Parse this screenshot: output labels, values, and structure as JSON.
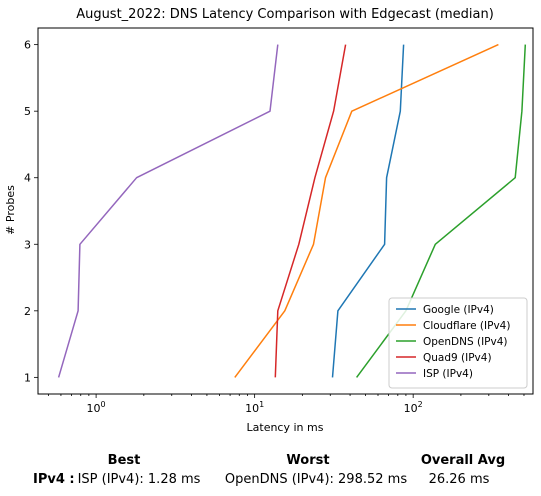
{
  "chart_data": {
    "type": "line",
    "title": "August_2022: DNS Latency Comparison with Edgecast (median)",
    "xlabel": "Latency in ms",
    "ylabel": "# Probes",
    "xscale": "log",
    "xlim": [
      0.43,
      570
    ],
    "ylim": [
      0.75,
      6.25
    ],
    "xticks": [
      {
        "value": 1,
        "base": "10",
        "exp": "0"
      },
      {
        "value": 10,
        "base": "10",
        "exp": "1"
      },
      {
        "value": 100,
        "base": "10",
        "exp": "2"
      }
    ],
    "yticks": [
      1,
      2,
      3,
      4,
      5,
      6
    ],
    "grid": false,
    "legend_position": "lower-right",
    "series": [
      {
        "name": "Google (IPv4)",
        "color": "#1f77b4",
        "points": [
          [
            31,
            1
          ],
          [
            33.5,
            2
          ],
          [
            66,
            3
          ],
          [
            68,
            4
          ],
          [
            83,
            5
          ],
          [
            87,
            6
          ]
        ]
      },
      {
        "name": "Cloudflare (IPv4)",
        "color": "#ff7f0e",
        "points": [
          [
            7.5,
            1
          ],
          [
            15.5,
            2
          ],
          [
            23.5,
            3
          ],
          [
            28,
            4
          ],
          [
            41,
            5
          ],
          [
            345,
            6
          ]
        ]
      },
      {
        "name": "OpenDNS (IPv4)",
        "color": "#2ca02c",
        "points": [
          [
            44,
            1
          ],
          [
            90,
            2
          ],
          [
            138,
            3
          ],
          [
            440,
            4
          ],
          [
            485,
            5
          ],
          [
            510,
            6
          ]
        ]
      },
      {
        "name": "Quad9 (IPv4)",
        "color": "#d62728",
        "points": [
          [
            13.5,
            1
          ],
          [
            14,
            2
          ],
          [
            19,
            3
          ],
          [
            24,
            4
          ],
          [
            31.5,
            5
          ],
          [
            37.5,
            6
          ]
        ]
      },
      {
        "name": "ISP (IPv4)",
        "color": "#9467bd",
        "points": [
          [
            0.58,
            1
          ],
          [
            0.77,
            2
          ],
          [
            0.79,
            3
          ],
          [
            1.8,
            4
          ],
          [
            12.5,
            5
          ],
          [
            14,
            6
          ]
        ]
      }
    ]
  },
  "summary": {
    "headers": {
      "best": "Best",
      "worst": "Worst",
      "avg": "Overall Avg"
    },
    "row_label": "IPv4 :",
    "best": "ISP (IPv4): 1.28 ms",
    "worst": "OpenDNS (IPv4): 298.52 ms",
    "avg": "26.26 ms"
  }
}
